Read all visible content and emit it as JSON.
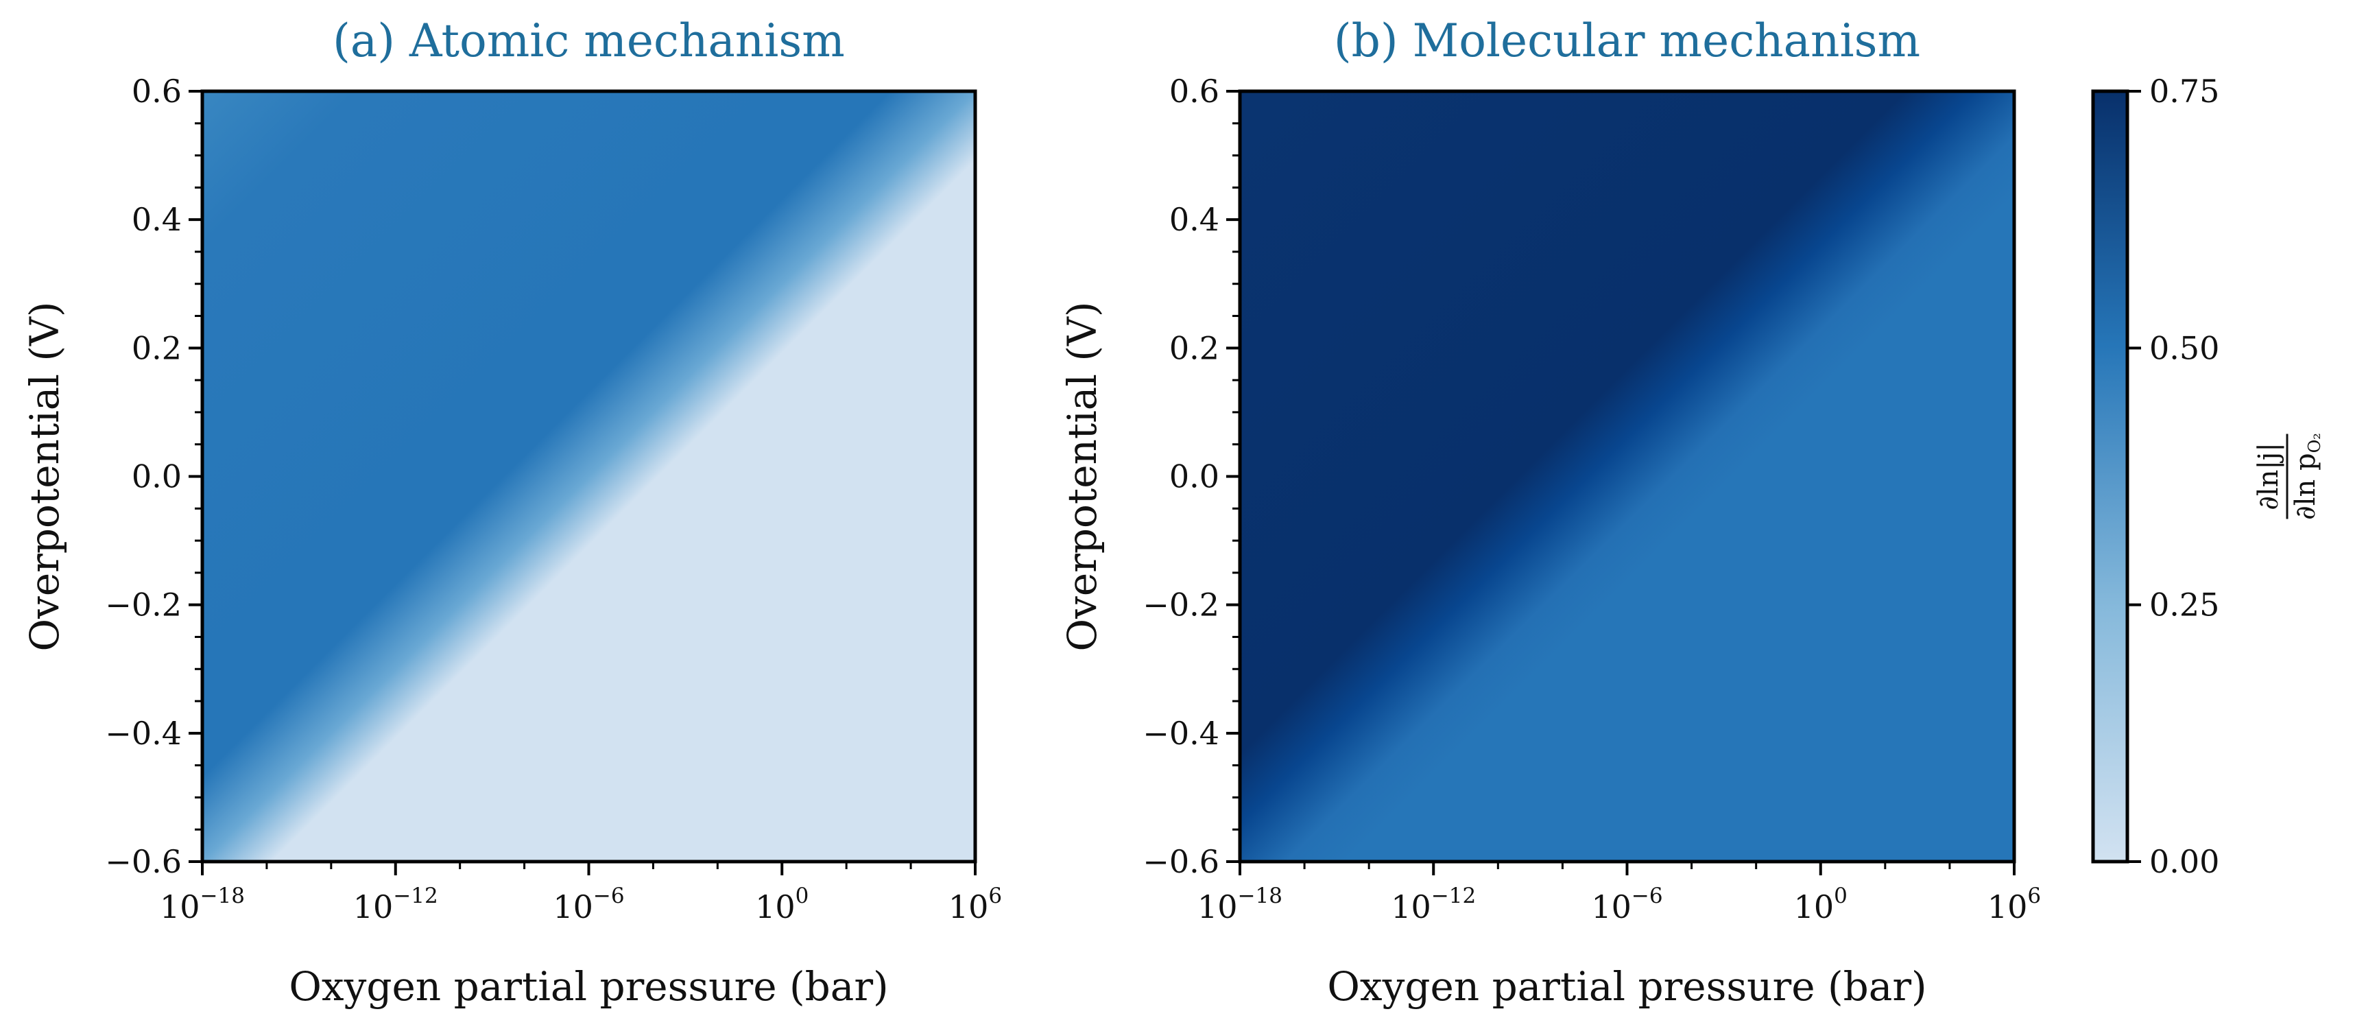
{
  "colors": {
    "cmap_low": "#d2e2f1",
    "cmap_mid": "#2676b8",
    "cmap_high": "#08306b",
    "title": "#1f6e9c"
  },
  "chart_data": [
    {
      "type": "heatmap",
      "title": "(a) Atomic mechanism",
      "xlabel": "Oxygen partial pressure (bar)",
      "ylabel": "Overpotential (V)",
      "xscale": "log",
      "xlim_exp": [
        -18,
        6
      ],
      "ylim": [
        -0.6,
        0.6
      ],
      "xticks": [
        {
          "base": "10",
          "exp": "−18"
        },
        {
          "base": "10",
          "exp": "−12"
        },
        {
          "base": "10",
          "exp": "−6"
        },
        {
          "base": "10",
          "exp": "0"
        },
        {
          "base": "10",
          "exp": "6"
        }
      ],
      "yticks": [
        "−0.6",
        "−0.4",
        "−0.2",
        "0.0",
        "0.2",
        "0.4",
        "0.6"
      ],
      "description_values": {
        "low_pressure_region": 0.5,
        "bottom_left_corner": 0.42,
        "high_pressure_region": 0.0,
        "transition": "diagonal boundary from upper-left to lower-right"
      }
    },
    {
      "type": "heatmap",
      "title": "(b) Molecular mechanism",
      "xlabel": "Oxygen partial pressure (bar)",
      "ylabel": "Overpotential (V)",
      "xscale": "log",
      "xlim_exp": [
        -18,
        6
      ],
      "ylim": [
        -0.6,
        0.6
      ],
      "xticks": [
        {
          "base": "10",
          "exp": "−18"
        },
        {
          "base": "10",
          "exp": "−12"
        },
        {
          "base": "10",
          "exp": "−6"
        },
        {
          "base": "10",
          "exp": "0"
        },
        {
          "base": "10",
          "exp": "6"
        }
      ],
      "yticks": [
        "−0.6",
        "−0.4",
        "−0.2",
        "0.0",
        "0.2",
        "0.4",
        "0.6"
      ],
      "description_values": {
        "low_pressure_region": 0.75,
        "high_pressure_region": 0.5,
        "transition": "diagonal boundary from upper-left to lower-right"
      }
    }
  ],
  "colorbar": {
    "range": [
      0,
      0.75
    ],
    "ticks": [
      "0.00",
      "0.25",
      "0.50",
      "0.75"
    ],
    "label_num": "∂ln|j|",
    "label_den": "∂ln p",
    "label_sub": "O₂"
  }
}
